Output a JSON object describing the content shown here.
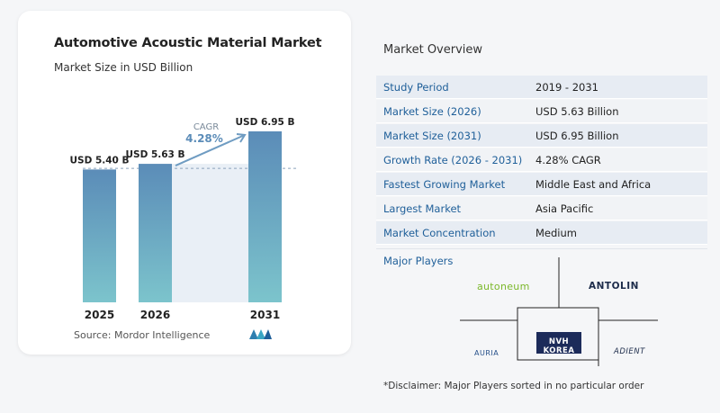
{
  "card": {
    "title": "Automotive Acoustic Material Market",
    "subtitle": "Market Size in USD Billion",
    "source": "Source:  Mordor Intelligence"
  },
  "chart_data": {
    "type": "bar",
    "title": "Automotive Acoustic Material Market",
    "subtitle": "Market Size in USD Billion",
    "categories": [
      "2025",
      "2026",
      "2031"
    ],
    "values": [
      5.4,
      5.63,
      6.95
    ],
    "data_labels": [
      "USD 5.40 B",
      "USD 5.63 B",
      "USD 6.95 B"
    ],
    "cagr_label": "CAGR",
    "cagr_value": "4.28%",
    "ylim": [
      0,
      6.95
    ],
    "colors": {
      "bar_top": "#5b8cb8",
      "bar_bottom": "#7cc4cc",
      "band": "#e9eff6",
      "arrow": "#6f9cc2",
      "dash": "#8aa2bb"
    }
  },
  "overview": {
    "title": "Market Overview",
    "rows": [
      {
        "label": "Study Period",
        "value": "2019 - 2031"
      },
      {
        "label": "Market Size (2026)",
        "value": "USD 5.63 Billion"
      },
      {
        "label": "Market Size (2031)",
        "value": "USD 6.95 Billion"
      },
      {
        "label": "Growth Rate (2026 - 2031)",
        "value": "4.28% CAGR"
      },
      {
        "label": "Fastest Growing Market",
        "value": "Middle East and Africa"
      },
      {
        "label": "Largest Market",
        "value": "Asia Pacific"
      },
      {
        "label": "Market Concentration",
        "value": "Medium"
      }
    ]
  },
  "players": {
    "title": "Major Players",
    "logos": [
      "autoneum",
      "ANTOLIN",
      "AURIA",
      "NVH KOREA",
      "ADIENT"
    ],
    "disclaimer": "*Disclaimer: Major Players sorted in no particular order"
  },
  "colors": {
    "label_blue": "#1f5f99",
    "row_alt": "#e7ecf3"
  }
}
